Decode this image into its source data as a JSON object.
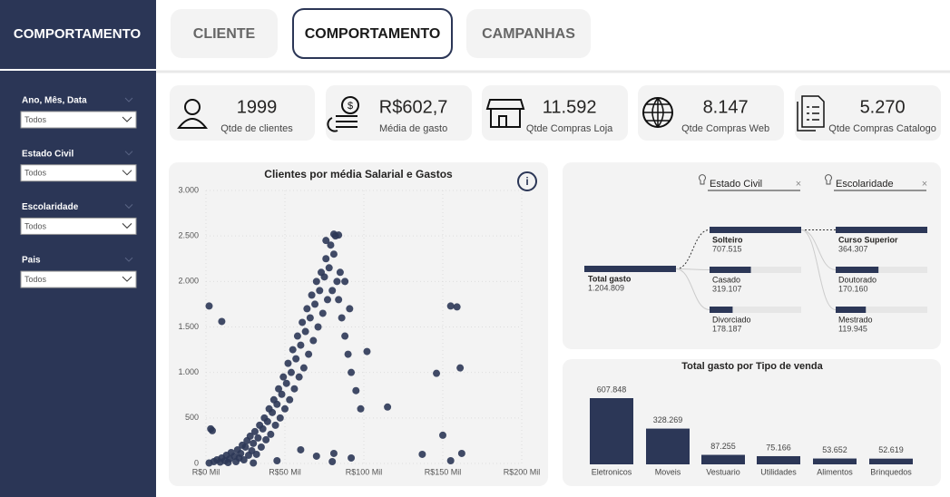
{
  "sidebar": {
    "title": "COMPORTAMENTO",
    "filters": [
      {
        "label": "Ano, Mês, Data",
        "value": "Todos"
      },
      {
        "label": "Estado Civil",
        "value": "Todos"
      },
      {
        "label": "Escolaridade",
        "value": "Todos"
      },
      {
        "label": "Pais",
        "value": "Todos"
      }
    ]
  },
  "tabs": [
    "CLIENTE",
    "COMPORTAMENTO",
    "CAMPANHAS"
  ],
  "kpis": [
    {
      "value": "1999",
      "label": "Qtde de clientes"
    },
    {
      "value": "R$602,7",
      "label": "Média de gasto"
    },
    {
      "value": "11.592",
      "label": "Qtde Compras Loja"
    },
    {
      "value": "8.147",
      "label": "Qtde Compras Web"
    },
    {
      "value": "5.270",
      "label": "Qtde Compras Catalogo"
    }
  ],
  "chart_data": [
    {
      "type": "scatter",
      "title": "Clientes por média Salarial e Gastos",
      "color": "#2c3757",
      "x": [
        2000,
        5000,
        7000,
        9000,
        10000,
        12000,
        13000,
        14000,
        15000,
        16000,
        18000,
        19000,
        20000,
        21000,
        22000,
        23000,
        24000,
        25000,
        26000,
        27000,
        28000,
        29000,
        30000,
        31000,
        32000,
        33000,
        34000,
        35000,
        36000,
        37000,
        38000,
        39000,
        40000,
        41000,
        42000,
        43000,
        44000,
        45000,
        46000,
        47000,
        48000,
        49000,
        50000,
        51000,
        52000,
        53000,
        54000,
        55000,
        56000,
        57000,
        58000,
        59000,
        60000,
        61000,
        62000,
        63000,
        64000,
        65000,
        66000,
        67000,
        68000,
        69000,
        70000,
        71000,
        72000,
        73000,
        74000,
        75000,
        76000,
        77000,
        78000,
        79000,
        80000,
        81000,
        82000,
        83000,
        84000,
        85000,
        86000,
        88000,
        90000,
        92000,
        95000,
        98000,
        88000,
        91000,
        3000,
        4000,
        76000,
        81000,
        84000,
        2000,
        10000,
        155000,
        159000,
        161000,
        146000,
        115000,
        150000,
        137000,
        155000,
        162000,
        81000,
        102000,
        60000,
        70000,
        45000,
        30000,
        80000,
        92000
      ],
      "y": [
        5,
        20,
        40,
        15,
        60,
        30,
        90,
        10,
        50,
        120,
        80,
        20,
        150,
        60,
        110,
        200,
        40,
        180,
        250,
        90,
        300,
        140,
        220,
        350,
        100,
        280,
        420,
        180,
        380,
        500,
        260,
        460,
        600,
        320,
        560,
        700,
        420,
        650,
        820,
        500,
        760,
        950,
        600,
        880,
        1100,
        700,
        1000,
        1250,
        820,
        1150,
        1400,
        950,
        1300,
        1550,
        1050,
        1450,
        1700,
        1200,
        1600,
        1850,
        1350,
        1750,
        2000,
        1500,
        1900,
        2100,
        1650,
        2050,
        2250,
        1800,
        2150,
        2400,
        1900,
        2300,
        2500,
        2000,
        1800,
        2100,
        1600,
        1400,
        1200,
        1000,
        800,
        600,
        2000,
        1700,
        380,
        360,
        2450,
        2520,
        2510,
        1730,
        1560,
        1730,
        1720,
        1050,
        990,
        620,
        310,
        100,
        30,
        110,
        110,
        1230,
        150,
        80,
        30,
        5,
        20,
        60
      ],
      "xlim": [
        0,
        200000
      ],
      "ylim": [
        0,
        3000
      ],
      "xticks": [
        {
          "value": 0,
          "label": "R$0 Mil"
        },
        {
          "value": 50000,
          "label": "R$50 Mil"
        },
        {
          "value": 100000,
          "label": "R$100 Mil"
        },
        {
          "value": 150000,
          "label": "R$150 Mil"
        },
        {
          "value": 200000,
          "label": "R$200 Mil"
        }
      ],
      "yticks": [
        0,
        {
          "value": 500,
          "label": "500"
        },
        {
          "value": 1000,
          "label": "1.000"
        },
        {
          "value": 1500,
          "label": "1.500"
        },
        {
          "value": 2000,
          "label": "2.000"
        },
        {
          "value": 2500,
          "label": "2.500"
        },
        {
          "value": 3000,
          "label": "3.000"
        }
      ],
      "grid": true
    },
    {
      "type": "decomposition_tree",
      "color": "#2c3757",
      "root": {
        "name": "Total gasto",
        "value": 1204809,
        "value_label": "1.204.809"
      },
      "levels": [
        {
          "name": "Estado Civil",
          "categories": [
            "Solteiro",
            "Casado",
            "Divorciado"
          ],
          "values": [
            707515,
            319107,
            178187
          ],
          "value_labels": [
            "707.515",
            "319.107",
            "178.187"
          ]
        },
        {
          "name": "Escolaridade",
          "categories": [
            "Curso Superior",
            "Doutorado",
            "Mestrado"
          ],
          "values": [
            364307,
            170160,
            119945
          ],
          "value_labels": [
            "364.307",
            "170.160",
            "119.945"
          ]
        }
      ]
    },
    {
      "type": "bar",
      "title": "Total gasto por Tipo de venda",
      "color": "#2c3757",
      "categories": [
        "Eletronicos",
        "Moveis",
        "Vestuario",
        "Utilidades",
        "Alimentos",
        "Brinquedos"
      ],
      "values": [
        607848,
        328269,
        87255,
        75166,
        53652,
        52619
      ],
      "value_labels": [
        "607.848",
        "328.269",
        "87.255",
        "75.166",
        "53.652",
        "52.619"
      ]
    }
  ]
}
